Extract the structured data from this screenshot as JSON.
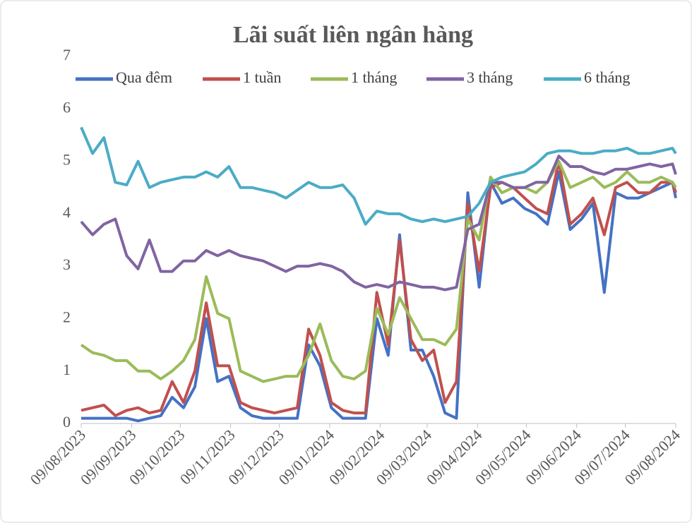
{
  "chart_data": {
    "type": "line",
    "title": "Lãi suất liên ngân hàng",
    "x": [
      "09/08/2023",
      "16/08/2023",
      "23/08/2023",
      "30/08/2023",
      "06/09/2023",
      "13/09/2023",
      "20/09/2023",
      "27/09/2023",
      "04/10/2023",
      "11/10/2023",
      "18/10/2023",
      "25/10/2023",
      "01/11/2023",
      "08/11/2023",
      "15/11/2023",
      "22/11/2023",
      "29/11/2023",
      "06/12/2023",
      "13/12/2023",
      "20/12/2023",
      "27/12/2023",
      "03/01/2024",
      "10/01/2024",
      "17/01/2024",
      "24/01/2024",
      "31/01/2024",
      "07/02/2024",
      "14/02/2024",
      "21/02/2024",
      "28/02/2024",
      "06/03/2024",
      "13/03/2024",
      "20/03/2024",
      "27/03/2024",
      "03/04/2024",
      "10/04/2024",
      "17/04/2024",
      "24/04/2024",
      "01/05/2024",
      "08/05/2024",
      "15/05/2024",
      "22/05/2024",
      "29/05/2024",
      "05/06/2024",
      "12/06/2024",
      "19/06/2024",
      "26/06/2024",
      "03/07/2024",
      "10/07/2024",
      "17/07/2024",
      "24/07/2024",
      "31/07/2024",
      "07/08/2024",
      "09/08/2024"
    ],
    "series": [
      {
        "name": "Qua đêm",
        "color": "#4472c4",
        "values": [
          0.1,
          0.1,
          0.1,
          0.1,
          0.1,
          0.05,
          0.1,
          0.15,
          0.5,
          0.3,
          0.7,
          2.0,
          0.8,
          0.9,
          0.3,
          0.15,
          0.1,
          0.1,
          0.1,
          0.1,
          1.5,
          1.1,
          0.3,
          0.1,
          0.1,
          0.1,
          2.0,
          1.3,
          3.6,
          1.4,
          1.4,
          0.9,
          0.2,
          0.1,
          4.4,
          2.6,
          4.6,
          4.2,
          4.3,
          4.1,
          4.0,
          3.8,
          4.8,
          3.7,
          3.9,
          4.2,
          2.5,
          4.4,
          4.3,
          4.3,
          4.4,
          4.5,
          4.6,
          4.3
        ]
      },
      {
        "name": "1 tuần",
        "color": "#c0504d",
        "values": [
          0.25,
          0.3,
          0.35,
          0.15,
          0.25,
          0.3,
          0.2,
          0.25,
          0.8,
          0.4,
          1.0,
          2.3,
          1.1,
          1.1,
          0.4,
          0.3,
          0.25,
          0.2,
          0.25,
          0.3,
          1.8,
          1.3,
          0.4,
          0.25,
          0.2,
          0.2,
          2.5,
          1.5,
          3.5,
          1.6,
          1.2,
          1.4,
          0.4,
          0.8,
          4.2,
          2.9,
          4.5,
          4.6,
          4.5,
          4.3,
          4.1,
          4.0,
          5.0,
          3.8,
          4.0,
          4.3,
          3.6,
          4.5,
          4.6,
          4.4,
          4.4,
          4.6,
          4.6,
          4.4
        ]
      },
      {
        "name": "1 tháng",
        "color": "#9bbb59",
        "values": [
          1.5,
          1.35,
          1.3,
          1.2,
          1.2,
          1.0,
          1.0,
          0.85,
          1.0,
          1.2,
          1.6,
          2.8,
          2.1,
          2.0,
          1.0,
          0.9,
          0.8,
          0.85,
          0.9,
          0.9,
          1.3,
          1.9,
          1.2,
          0.9,
          0.85,
          1.0,
          2.2,
          1.7,
          2.4,
          2.0,
          1.6,
          1.6,
          1.5,
          1.8,
          3.9,
          3.5,
          4.7,
          4.4,
          4.5,
          4.5,
          4.4,
          4.6,
          5.0,
          4.5,
          4.6,
          4.7,
          4.5,
          4.6,
          4.8,
          4.6,
          4.6,
          4.7,
          4.6,
          4.5
        ]
      },
      {
        "name": "3 tháng",
        "color": "#8064a2",
        "values": [
          3.85,
          3.6,
          3.8,
          3.9,
          3.2,
          2.95,
          3.5,
          2.9,
          2.9,
          3.1,
          3.1,
          3.3,
          3.2,
          3.3,
          3.2,
          3.15,
          3.1,
          3.0,
          2.9,
          3.0,
          3.0,
          3.05,
          3.0,
          2.9,
          2.7,
          2.6,
          2.65,
          2.6,
          2.7,
          2.65,
          2.6,
          2.6,
          2.55,
          2.6,
          3.7,
          3.8,
          4.6,
          4.6,
          4.5,
          4.5,
          4.6,
          4.6,
          5.1,
          4.9,
          4.9,
          4.8,
          4.75,
          4.85,
          4.85,
          4.9,
          4.95,
          4.9,
          4.95,
          4.75
        ]
      },
      {
        "name": "6 tháng",
        "color": "#4bacc6",
        "values": [
          5.65,
          5.15,
          5.45,
          4.6,
          4.55,
          5.0,
          4.5,
          4.6,
          4.65,
          4.7,
          4.7,
          4.8,
          4.7,
          4.9,
          4.5,
          4.5,
          4.45,
          4.4,
          4.3,
          4.45,
          4.6,
          4.5,
          4.5,
          4.55,
          4.3,
          3.8,
          4.05,
          4.0,
          4.0,
          3.9,
          3.85,
          3.9,
          3.85,
          3.9,
          3.95,
          4.2,
          4.6,
          4.7,
          4.75,
          4.8,
          4.95,
          5.15,
          5.2,
          5.2,
          5.15,
          5.15,
          5.2,
          5.2,
          5.25,
          5.15,
          5.15,
          5.2,
          5.25,
          5.15
        ]
      }
    ],
    "xlim": [
      "09/08/2023",
      "09/08/2024"
    ],
    "xticks": [
      "09/08/2023",
      "09/09/2023",
      "09/10/2023",
      "09/11/2023",
      "09/12/2023",
      "09/01/2024",
      "09/02/2024",
      "09/03/2024",
      "09/04/2024",
      "09/05/2024",
      "09/06/2024",
      "09/07/2024",
      "09/08/2024"
    ],
    "ylim": [
      0,
      7
    ],
    "yticks": [
      0,
      1,
      2,
      3,
      4,
      5,
      6,
      7
    ],
    "legend": "top",
    "grid": false
  }
}
